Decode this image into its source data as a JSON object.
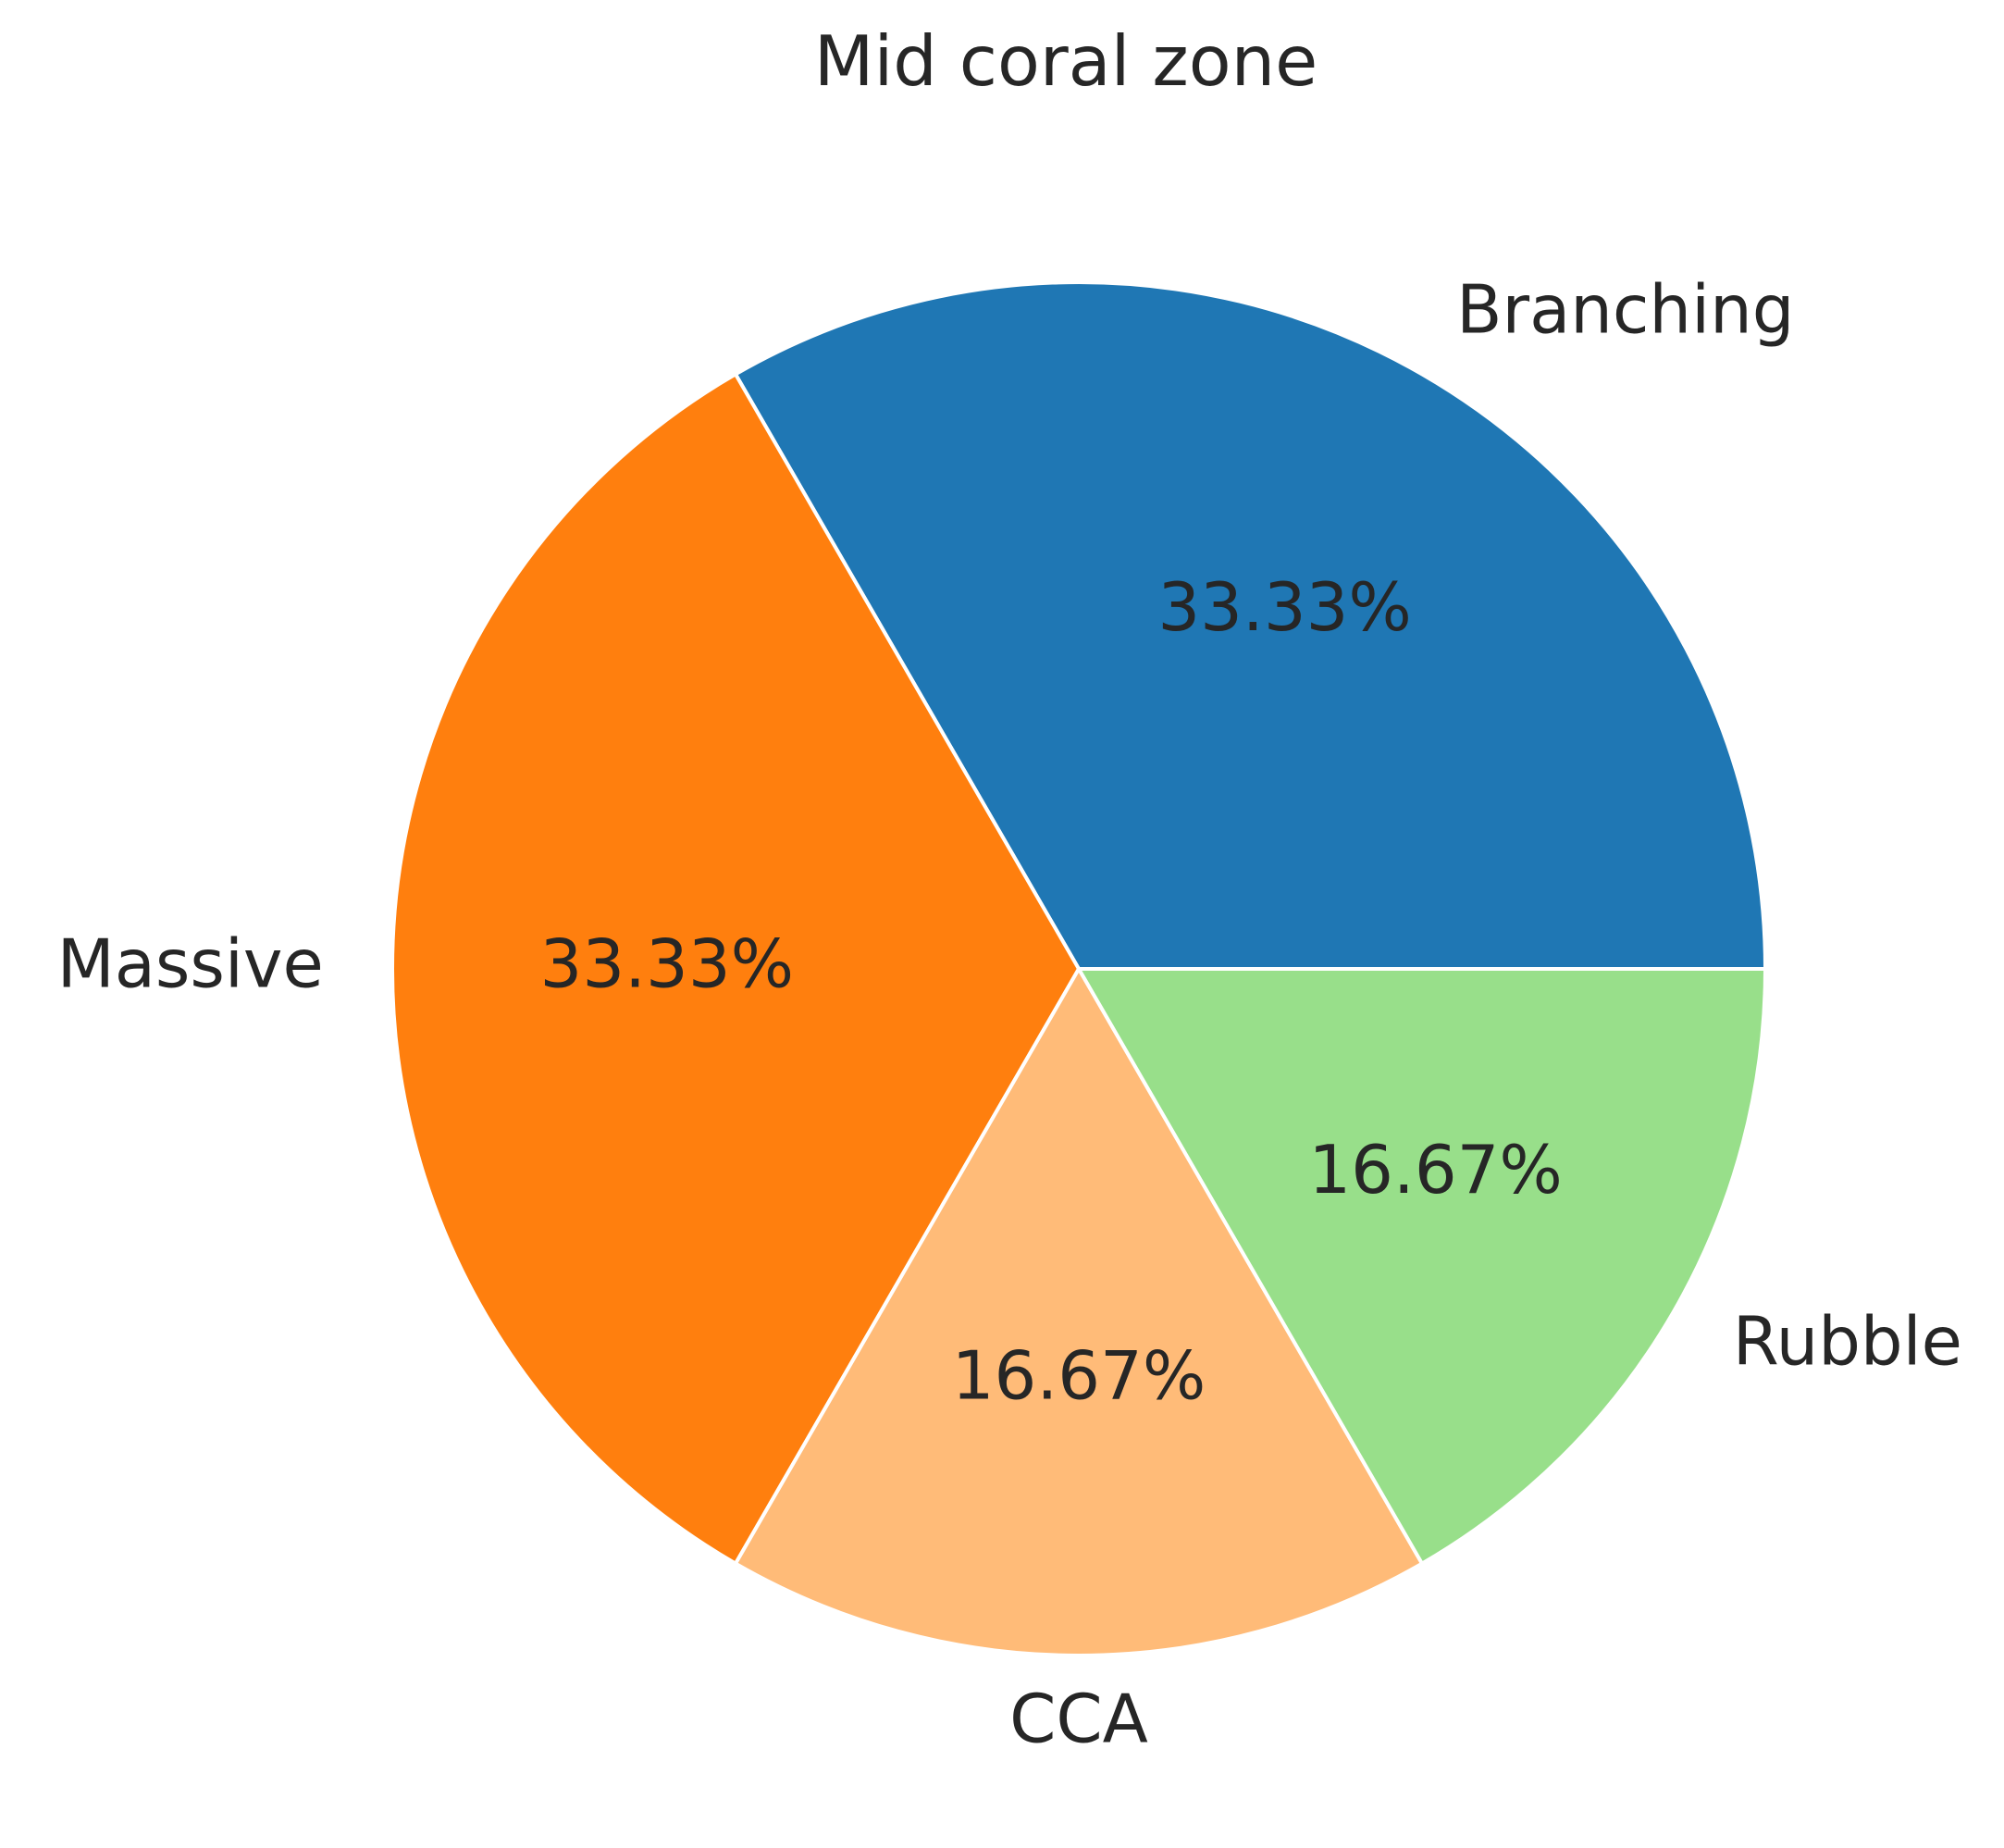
{
  "chart_data": {
    "type": "pie",
    "title": "Mid coral zone",
    "categories": [
      "Branching",
      "Massive",
      "CCA",
      "Rubble"
    ],
    "values": [
      2,
      2,
      1,
      1
    ],
    "percent_labels": [
      "33.33%",
      "33.33%",
      "16.67%",
      "16.67%"
    ],
    "colors": [
      "#1f77b4",
      "#ff7f0e",
      "#ffbb78",
      "#98df8a"
    ],
    "start_angle_deg": 0,
    "direction": "counterclockwise",
    "legend": "none"
  }
}
